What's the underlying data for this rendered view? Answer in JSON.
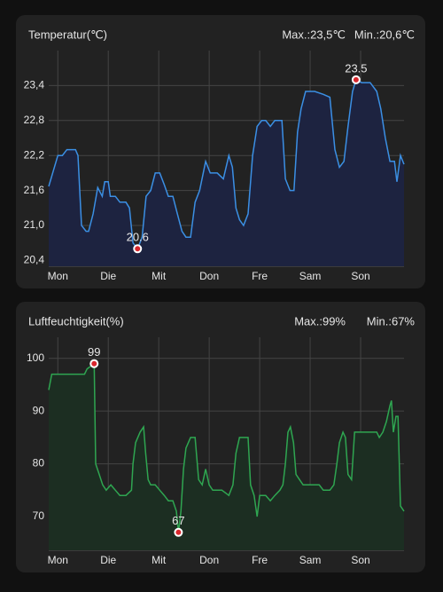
{
  "chart_data": [
    {
      "type": "line",
      "title": "Temperatur(℃)",
      "max_label": "Max.:23,5℃",
      "min_label": "Min.:20,6℃",
      "x": [
        -0.18,
        0,
        0.09,
        0.18,
        0.35,
        0.4,
        0.47,
        0.56,
        0.61,
        0.7,
        0.79,
        0.88,
        0.93,
        1.0,
        1.04,
        1.14,
        1.23,
        1.35,
        1.42,
        1.49,
        1.58,
        1.67,
        1.75,
        1.84,
        1.93,
        2.02,
        2.11,
        2.19,
        2.28,
        2.37,
        2.46,
        2.54,
        2.63,
        2.72,
        2.81,
        2.93,
        3.02,
        3.16,
        3.28,
        3.39,
        3.46,
        3.53,
        3.6,
        3.68,
        3.77,
        3.86,
        3.95,
        4.04,
        4.12,
        4.21,
        4.3,
        4.44,
        4.51,
        4.6,
        4.68,
        4.75,
        4.82,
        4.91,
        5.09,
        5.26,
        5.39,
        5.49,
        5.58,
        5.67,
        5.75,
        5.84,
        5.91,
        6.02,
        6.19,
        6.32,
        6.4,
        6.49,
        6.58,
        6.67,
        6.72,
        6.79,
        6.86
      ],
      "series": [
        {
          "color": "#3b8fe4",
          "fill": "#1d2340",
          "values": [
            21.67,
            22.2,
            22.2,
            22.3,
            22.3,
            22.2,
            21.0,
            20.9,
            20.9,
            21.2,
            21.65,
            21.5,
            21.75,
            21.75,
            21.5,
            21.5,
            21.4,
            21.4,
            21.3,
            20.7,
            20.6,
            20.8,
            21.5,
            21.6,
            21.9,
            21.9,
            21.7,
            21.5,
            21.5,
            21.2,
            20.9,
            20.8,
            20.8,
            21.4,
            21.6,
            22.1,
            21.9,
            21.9,
            21.8,
            22.2,
            22.0,
            21.3,
            21.1,
            21.0,
            21.2,
            22.2,
            22.7,
            22.8,
            22.8,
            22.7,
            22.8,
            22.8,
            21.8,
            21.6,
            21.6,
            22.6,
            23.0,
            23.3,
            23.3,
            23.25,
            23.2,
            22.3,
            22.0,
            22.1,
            22.7,
            23.3,
            23.5,
            23.45,
            23.45,
            23.3,
            23.0,
            22.5,
            22.1,
            22.1,
            21.75,
            22.2,
            22.05
          ]
        }
      ],
      "xlim": [
        -0.18,
        6.86
      ],
      "xticks": [
        {
          "value": 0,
          "label": "Mon"
        },
        {
          "value": 1,
          "label": "Die"
        },
        {
          "value": 2,
          "label": "Mit"
        },
        {
          "value": 3,
          "label": "Don"
        },
        {
          "value": 4,
          "label": "Fre"
        },
        {
          "value": 5,
          "label": "Sam"
        },
        {
          "value": 6,
          "label": "Son"
        }
      ],
      "ylim": [
        20.3,
        24.0
      ],
      "yticks": [
        {
          "value": 20.4,
          "label": "20,4"
        },
        {
          "value": 21.0,
          "label": "21,0"
        },
        {
          "value": 21.6,
          "label": "21,6"
        },
        {
          "value": 22.2,
          "label": "22,2"
        },
        {
          "value": 22.8,
          "label": "22,8"
        },
        {
          "value": 23.4,
          "label": "23,4"
        }
      ],
      "grid": true,
      "annotations": [
        {
          "x": 5.91,
          "y": 23.5,
          "text": "23.5"
        },
        {
          "x": 1.58,
          "y": 20.6,
          "text": "20.6"
        }
      ]
    },
    {
      "type": "line",
      "title": "Luftfeuchtigkeit(%)",
      "max_label": "Max.:99%",
      "min_label": "Min.:67%",
      "x": [
        -0.18,
        -0.12,
        0,
        0.18,
        0.35,
        0.53,
        0.58,
        0.72,
        0.75,
        0.82,
        0.89,
        0.96,
        1.05,
        1.14,
        1.23,
        1.35,
        1.46,
        1.49,
        1.54,
        1.63,
        1.7,
        1.74,
        1.79,
        1.84,
        1.93,
        2.02,
        2.11,
        2.19,
        2.28,
        2.35,
        2.39,
        2.44,
        2.49,
        2.54,
        2.63,
        2.72,
        2.79,
        2.86,
        2.93,
        3.0,
        3.07,
        3.25,
        3.39,
        3.47,
        3.53,
        3.6,
        3.68,
        3.77,
        3.82,
        3.89,
        3.95,
        4.0,
        4.12,
        4.21,
        4.3,
        4.4,
        4.46,
        4.51,
        4.56,
        4.61,
        4.67,
        4.72,
        4.79,
        4.86,
        4.93,
        5.18,
        5.26,
        5.39,
        5.47,
        5.53,
        5.58,
        5.65,
        5.7,
        5.75,
        5.82,
        5.88,
        6.05,
        6.23,
        6.32,
        6.37,
        6.44,
        6.51,
        6.58,
        6.61,
        6.65,
        6.7,
        6.74,
        6.79,
        6.86
      ],
      "series": [
        {
          "color": "#2fa651",
          "fill": "#1c2e22",
          "values": [
            94,
            97,
            97,
            97,
            97,
            97,
            98,
            99,
            80,
            78,
            76,
            75,
            76,
            75,
            74,
            74,
            75,
            80,
            84,
            86,
            87,
            82,
            77,
            76,
            76,
            75,
            74,
            73,
            73,
            71,
            67,
            71,
            79,
            83,
            85,
            85,
            77,
            76,
            79,
            76,
            75,
            75,
            74,
            76,
            82,
            85,
            85,
            85,
            76,
            74,
            70,
            74,
            74,
            73,
            74,
            75,
            76,
            80,
            86,
            87,
            84,
            78,
            77,
            76,
            76,
            76,
            75,
            75,
            76,
            80,
            84,
            86,
            85,
            78,
            77,
            86,
            86,
            86,
            86,
            85,
            86,
            88,
            91,
            92,
            86,
            89,
            89,
            72,
            71
          ]
        }
      ],
      "xlim": [
        -0.18,
        6.86
      ],
      "xticks": [
        {
          "value": 0,
          "label": "Mon"
        },
        {
          "value": 1,
          "label": "Die"
        },
        {
          "value": 2,
          "label": "Mit"
        },
        {
          "value": 3,
          "label": "Don"
        },
        {
          "value": 4,
          "label": "Fre"
        },
        {
          "value": 5,
          "label": "Sam"
        },
        {
          "value": 6,
          "label": "Son"
        }
      ],
      "ylim": [
        63.6,
        104
      ],
      "yticks": [
        70,
        80,
        90,
        100
      ],
      "grid": true,
      "annotations": [
        {
          "x": 0.72,
          "y": 99,
          "text": "99"
        },
        {
          "x": 2.39,
          "y": 67,
          "text": "67"
        }
      ]
    }
  ]
}
